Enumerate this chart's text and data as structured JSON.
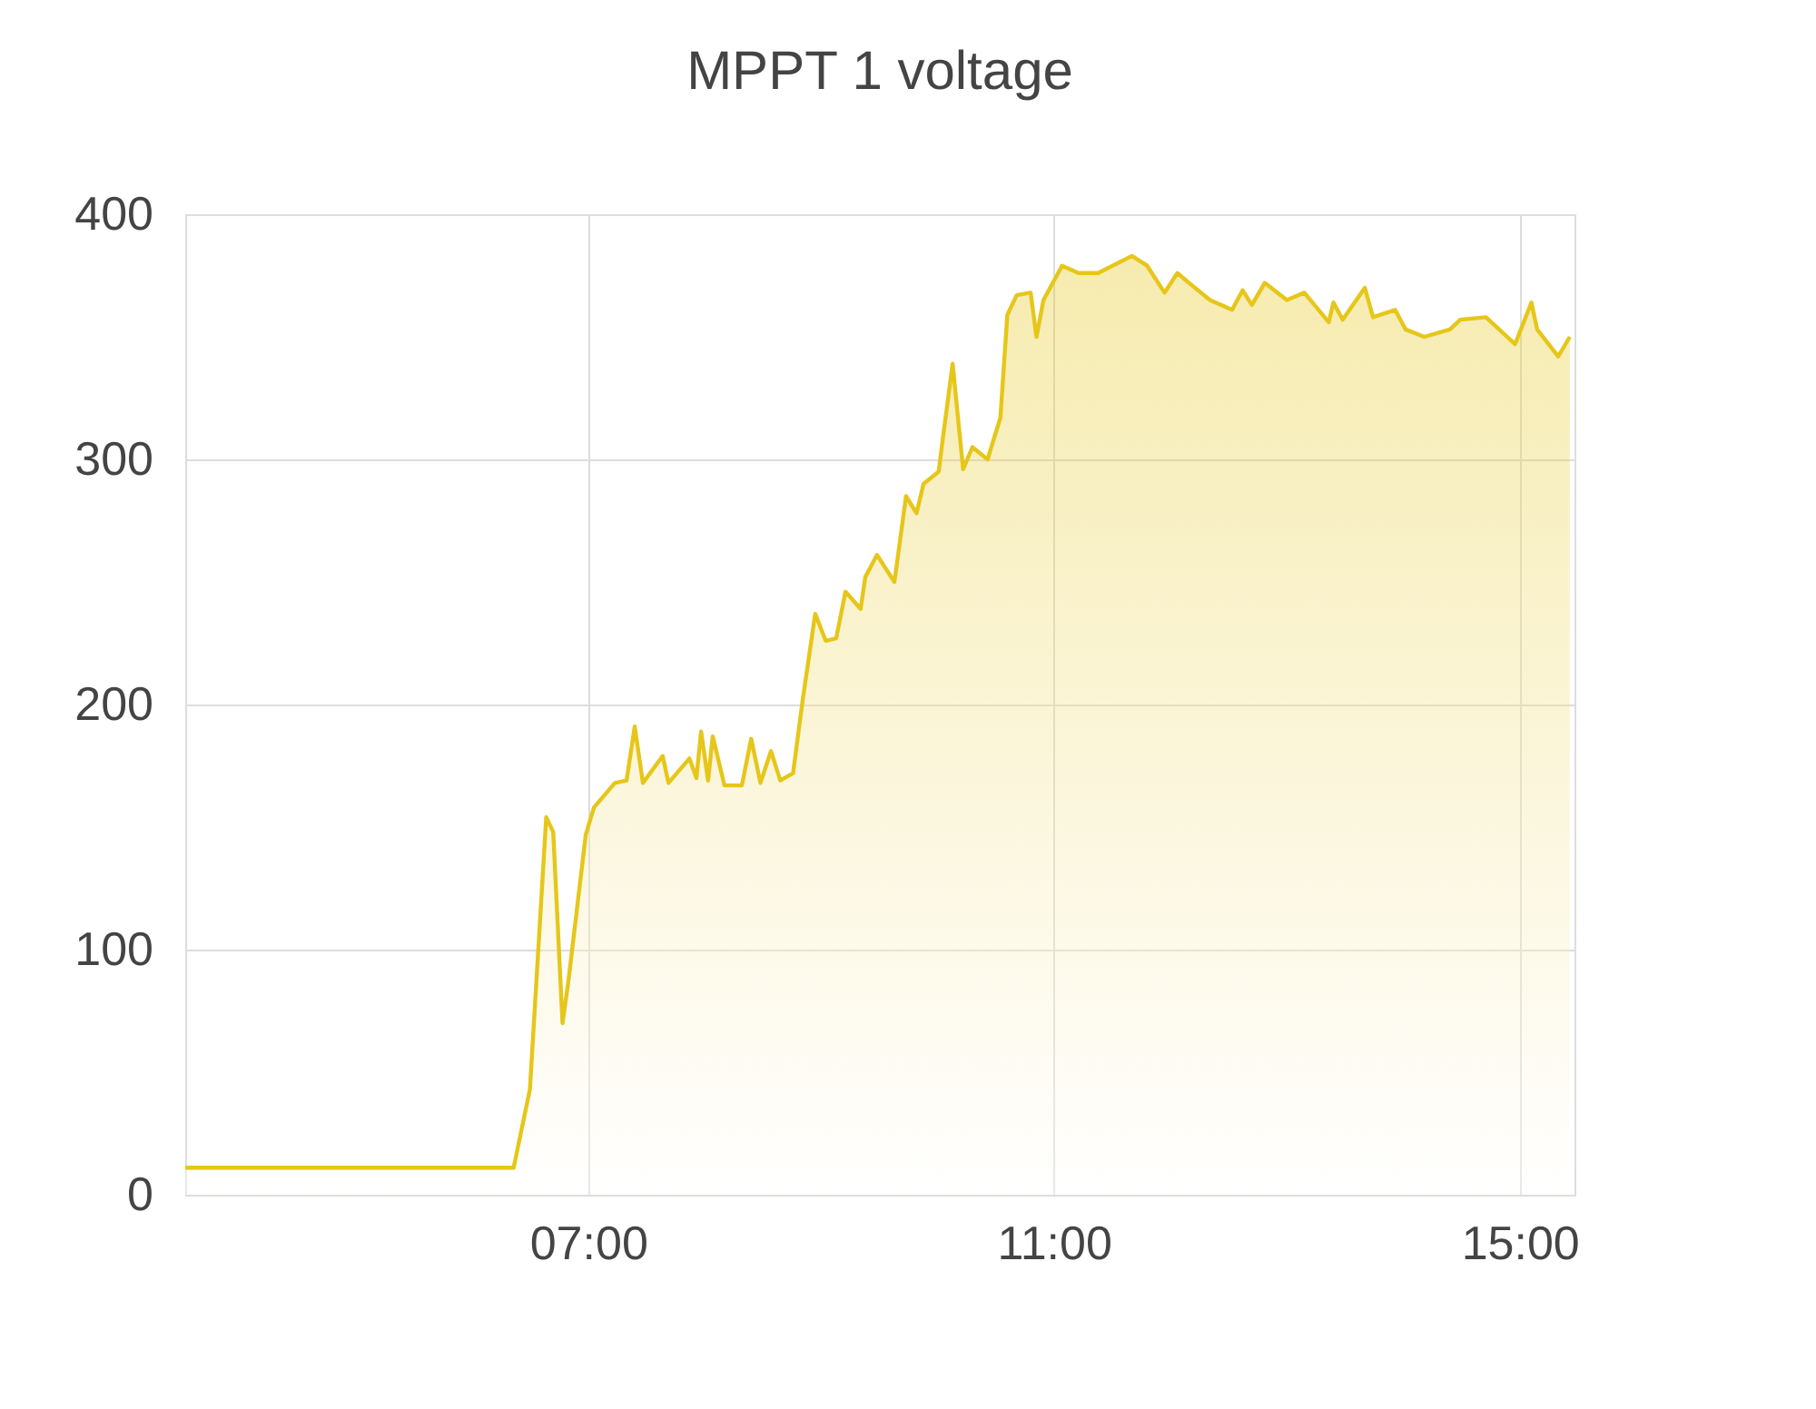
{
  "chart_data": {
    "type": "area",
    "title": "MPPT 1 voltage",
    "x": [
      3.54,
      6.36,
      6.5,
      6.64,
      6.7,
      6.78,
      6.83,
      6.98,
      7.05,
      7.23,
      7.33,
      7.4,
      7.47,
      7.64,
      7.69,
      7.87,
      7.93,
      7.97,
      8.03,
      8.07,
      8.17,
      8.32,
      8.4,
      8.48,
      8.57,
      8.65,
      8.76,
      8.84,
      8.95,
      9.04,
      9.13,
      9.21,
      9.34,
      9.38,
      9.48,
      9.63,
      9.73,
      9.82,
      9.88,
      10.01,
      10.05,
      10.13,
      10.22,
      10.3,
      10.43,
      10.54,
      10.6,
      10.68,
      10.8,
      10.85,
      10.91,
      11.07,
      11.21,
      11.38,
      11.67,
      11.8,
      11.95,
      12.06,
      12.16,
      12.34,
      12.53,
      12.62,
      12.7,
      12.81,
      13.0,
      13.15,
      13.36,
      13.4,
      13.48,
      13.67,
      13.74,
      13.93,
      14.02,
      14.18,
      14.4,
      14.49,
      14.71,
      14.96,
      15.1,
      15.15,
      15.33,
      15.43
    ],
    "series": [
      {
        "color": "#e6c619",
        "values": [
          11,
          11,
          43,
          154,
          148,
          70,
          87,
          147,
          158,
          168,
          169,
          191,
          168,
          179,
          168,
          178,
          170,
          189,
          169,
          187,
          167,
          167,
          186,
          168,
          181,
          169,
          172,
          201,
          237,
          226,
          227,
          246,
          239,
          252,
          261,
          250,
          285,
          278,
          290,
          295,
          310,
          339,
          296,
          305,
          300,
          317,
          359,
          367,
          368,
          350,
          365,
          379,
          376,
          376,
          383,
          379,
          368,
          376,
          372,
          365,
          361,
          369,
          363,
          372,
          365,
          368,
          356,
          364,
          357,
          370,
          358,
          361,
          353,
          350,
          353,
          357,
          358,
          347,
          364,
          353,
          342,
          350
        ]
      }
    ],
    "xlim": [
      3.54,
      15.47
    ],
    "xticks": [
      {
        "value": 7,
        "label": "07:00"
      },
      {
        "value": 11,
        "label": "11:00"
      },
      {
        "value": 15,
        "label": "15:00"
      }
    ],
    "ylim": [
      0,
      400
    ],
    "yticks": [
      0,
      100,
      200,
      300,
      400
    ],
    "grid": true
  }
}
